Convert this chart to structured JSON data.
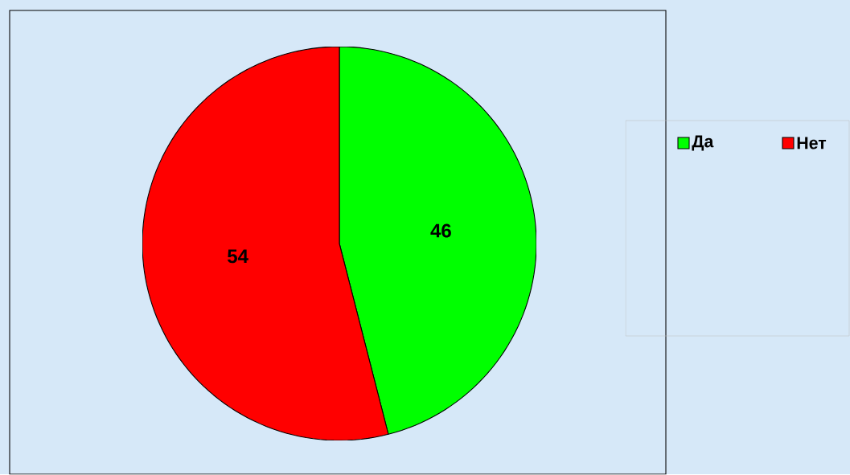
{
  "chart_data": {
    "type": "pie",
    "categories": [
      "Да",
      "Нет"
    ],
    "values": [
      46,
      54
    ],
    "colors": [
      "#00ff00",
      "#ff0000"
    ],
    "data_labels": true,
    "legend": "right"
  }
}
